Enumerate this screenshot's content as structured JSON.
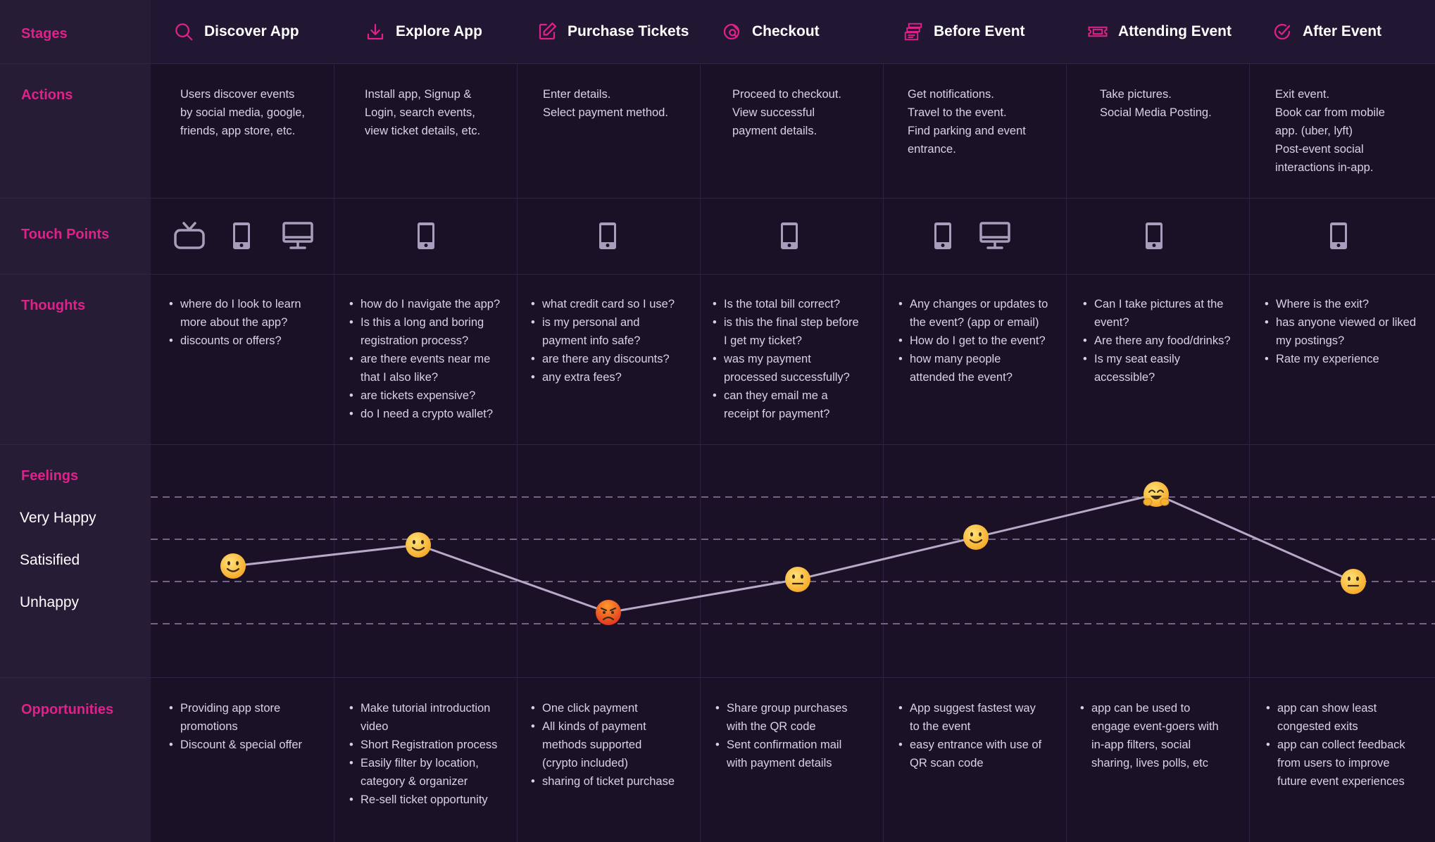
{
  "row_labels": {
    "stages": "Stages",
    "actions": "Actions",
    "touch_points": "Touch Points",
    "thoughts": "Thoughts",
    "feelings": "Feelings",
    "opportunities": "Opportunities"
  },
  "feeling_levels": [
    "Very Happy",
    "Satisified",
    "Unhappy"
  ],
  "colors": {
    "accent": "#e0218a",
    "background": "#1b1127",
    "label_column": "#271c36",
    "line": "#b8a9c9"
  },
  "stages": [
    {
      "title": "Discover App",
      "icon": "search-icon",
      "actions": [
        "Users discover events",
        "by social media, google,",
        "friends, app store, etc."
      ],
      "touch_points": [
        "tv-icon",
        "mobile-icon",
        "desktop-icon"
      ],
      "thoughts": [
        [
          "where do I look to learn",
          "more about the app?"
        ],
        [
          "discounts or offers?"
        ]
      ],
      "feeling": "satisfied",
      "opportunities": [
        [
          "Providing app store",
          "promotions"
        ],
        [
          "Discount & special offer"
        ]
      ]
    },
    {
      "title": "Explore App",
      "icon": "download-icon",
      "actions": [
        "Install app, Signup &",
        "Login, search events,",
        "view ticket details, etc."
      ],
      "touch_points": [
        "mobile-icon"
      ],
      "thoughts": [
        [
          "how do I navigate the app?"
        ],
        [
          "Is this a long and boring",
          "registration process?"
        ],
        [
          "are there events near me",
          "that I also like?"
        ],
        [
          "are tickets expensive?"
        ],
        [
          "do I need a crypto wallet?"
        ]
      ],
      "feeling": "satisfied",
      "opportunities": [
        [
          "Make tutorial introduction",
          "video"
        ],
        [
          "Short Registration process"
        ],
        [
          "Easily filter by location,",
          "category & organizer"
        ],
        [
          "Re-sell ticket opportunity"
        ]
      ]
    },
    {
      "title": "Purchase Tickets",
      "icon": "edit-icon",
      "actions": [
        "Enter details.",
        "Select payment method."
      ],
      "touch_points": [
        "mobile-icon"
      ],
      "thoughts": [
        [
          "what credit card so I use?"
        ],
        [
          "is my personal and",
          "payment info safe?"
        ],
        [
          "are there any discounts?"
        ],
        [
          "any extra fees?"
        ]
      ],
      "feeling": "angry",
      "opportunities": [
        [
          "One click payment"
        ],
        [
          "All kinds of payment",
          "methods supported",
          "(crypto included)"
        ],
        [
          "sharing of ticket purchase"
        ]
      ]
    },
    {
      "title": "Checkout",
      "icon": "checkout-icon",
      "actions": [
        "Proceed to checkout.",
        "View successful",
        "payment details."
      ],
      "touch_points": [
        "mobile-icon"
      ],
      "thoughts": [
        [
          "Is the total bill correct?"
        ],
        [
          "is this the final step before",
          "I get my ticket?"
        ],
        [
          "was my payment",
          "processed successfully?"
        ],
        [
          "can they email me a",
          "receipt for payment?"
        ]
      ],
      "feeling": "neutral",
      "opportunities": [
        [
          "Share group purchases",
          "with the QR code"
        ],
        [
          "Sent confirmation mail",
          "with payment details"
        ]
      ]
    },
    {
      "title": "Before Event",
      "icon": "stack-icon",
      "actions": [
        "Get notifications.",
        "Travel to the event.",
        "Find parking and event",
        "entrance."
      ],
      "touch_points": [
        "mobile-icon",
        "desktop-icon"
      ],
      "thoughts": [
        [
          "Any changes or updates to",
          "the event? (app or email)"
        ],
        [
          "How do I get to the event?"
        ],
        [
          "how many people",
          "attended the event?"
        ]
      ],
      "feeling": "satisfied",
      "opportunities": [
        [
          "App suggest fastest way",
          "to the event"
        ],
        [
          "easy entrance with use of",
          "QR scan code"
        ]
      ]
    },
    {
      "title": "Attending Event",
      "icon": "ticket-icon",
      "actions": [
        "Take pictures.",
        "Social Media Posting."
      ],
      "touch_points": [
        "mobile-icon"
      ],
      "thoughts": [
        [
          "Can I take pictures at the",
          "event?"
        ],
        [
          "Are there any food/drinks?"
        ],
        [
          "Is my seat easily",
          "accessible?"
        ]
      ],
      "feeling": "very-happy",
      "opportunities": [
        [
          "app can be used to",
          "engage event-goers with",
          "in-app filters, social",
          "sharing, lives polls, etc"
        ]
      ]
    },
    {
      "title": "After Event",
      "icon": "check-circle-icon",
      "actions": [
        "Exit event.",
        "Book car from mobile",
        "app. (uber, lyft)",
        "Post-event social",
        "interactions in-app."
      ],
      "touch_points": [
        "mobile-icon"
      ],
      "thoughts": [
        [
          "Where is the exit?"
        ],
        [
          "has anyone viewed or liked",
          "my postings?"
        ],
        [
          "Rate my experience"
        ]
      ],
      "feeling": "neutral",
      "opportunities": [
        [
          "app can show least",
          "congested exits"
        ],
        [
          "app can collect feedback",
          "from users to improve",
          "future event experiences"
        ]
      ]
    }
  ]
}
